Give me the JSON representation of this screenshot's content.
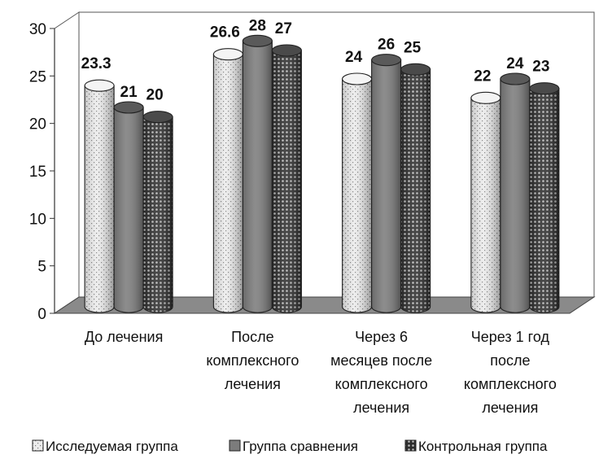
{
  "chart_data": {
    "type": "bar",
    "categories": [
      [
        "До лечения"
      ],
      [
        "После",
        "комплексного",
        "лечения"
      ],
      [
        "Через 6",
        "месяцев после",
        "комплексного",
        "лечения"
      ],
      [
        "Через 1 год",
        "после",
        "комплексного",
        "лечения"
      ]
    ],
    "series": [
      {
        "name": "Исследуемая группа",
        "values": [
          23.3,
          26.6,
          24,
          22
        ],
        "labels": [
          "23.3",
          "26.6",
          "24",
          "22"
        ]
      },
      {
        "name": "Группа сравнения",
        "values": [
          21,
          28,
          26,
          24
        ],
        "labels": [
          "21",
          "28",
          "26",
          "24"
        ]
      },
      {
        "name": "Контрольная группа",
        "values": [
          20,
          27,
          25,
          23
        ],
        "labels": [
          "20",
          "27",
          "25",
          "23"
        ]
      }
    ],
    "ylim": [
      0,
      30
    ],
    "yticks": [
      "0",
      "5",
      "10",
      "15",
      "20",
      "25",
      "30"
    ],
    "legend_position": "bottom",
    "grid": false,
    "colors": {
      "series_1": "#e8e8e8",
      "series_2": "#7c7c7c",
      "series_3": "#3a3a3a",
      "floor": "#8a8a8a"
    }
  }
}
